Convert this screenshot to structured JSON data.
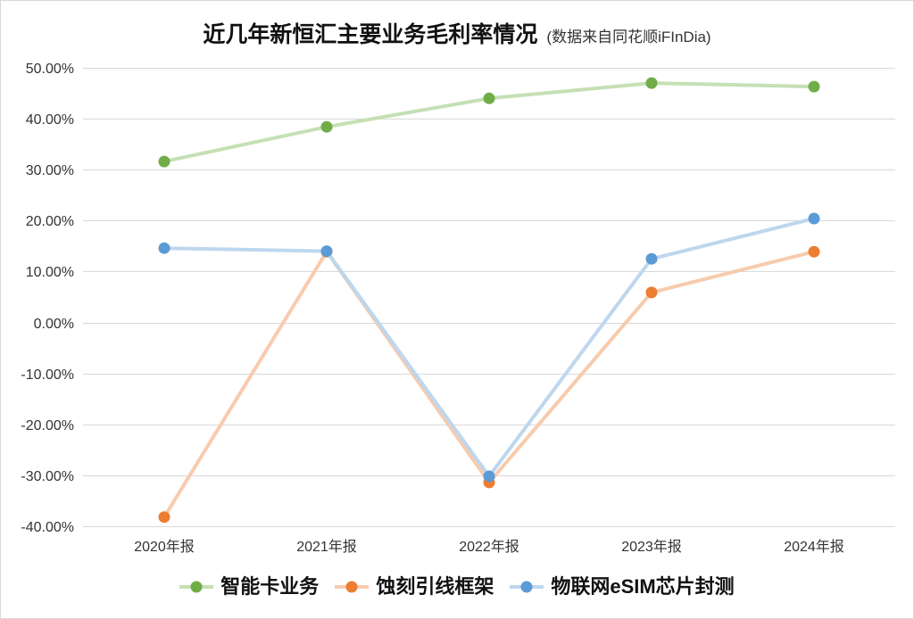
{
  "chart_data": {
    "type": "line",
    "title": "近几年新恒汇主要业务毛利率情况",
    "subtitle": "(数据来自同花顺iFInDia)",
    "categories": [
      "2020年报",
      "2021年报",
      "2022年报",
      "2023年报",
      "2024年报"
    ],
    "ylim": [
      -40,
      50
    ],
    "y_tick_values": [
      50,
      40,
      30,
      20,
      10,
      0,
      -10,
      -20,
      -30,
      -40
    ],
    "y_tick_labels": [
      "50.00%",
      "40.00%",
      "30.00%",
      "20.00%",
      "10.00%",
      "0.00%",
      "-10.00%",
      "-20.00%",
      "-30.00%",
      "-40.00%"
    ],
    "grid": true,
    "legend": "bottom",
    "series": [
      {
        "name": "智能卡业务",
        "values": [
          31.6,
          38.4,
          44.0,
          47.0,
          46.3
        ],
        "color": "#70AD47",
        "line_color": "#C5E0B4"
      },
      {
        "name": "蚀刻引线框架",
        "values": [
          -38.2,
          13.9,
          -31.4,
          5.9,
          13.9
        ],
        "color": "#ED7D31",
        "line_color": "#F8CBAD"
      },
      {
        "name": "物联网eSIM芯片封测",
        "values": [
          14.6,
          14.0,
          -30.2,
          12.5,
          20.4
        ],
        "color": "#5B9BD5",
        "line_color": "#BDD7EE"
      }
    ]
  }
}
